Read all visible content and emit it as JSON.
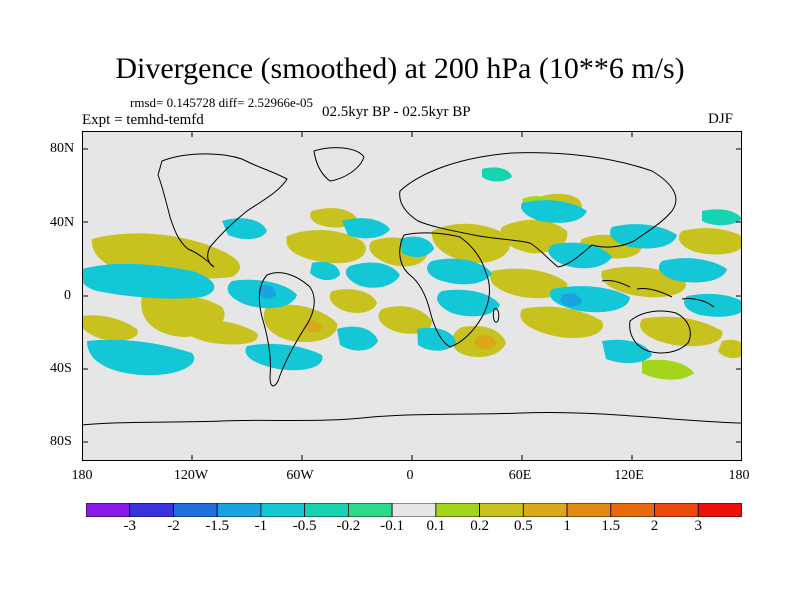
{
  "title": "Divergence (smoothed) at 200 hPa (10**6 m/s)",
  "stats_text": "rmsd= 0.145728 diff= 2.52966e-05",
  "experiment_text": "Expt = temhd-temfd",
  "period_text": "02.5kyr BP - 02.5kyr BP",
  "season_text": "DJF",
  "lat_labels": [
    "80N",
    "40N",
    "0",
    "40S",
    "80S"
  ],
  "lon_labels": [
    "180",
    "120W",
    "60W",
    "0",
    "60E",
    "120E",
    "180"
  ],
  "colorbar": {
    "labels": [
      "-3",
      "-2",
      "-1.5",
      "-1",
      "-0.5",
      "-0.2",
      "-0.1",
      "0.1",
      "0.2",
      "0.5",
      "1",
      "1.5",
      "2",
      "3"
    ],
    "colors": [
      "#8b1ae8",
      "#3a32dc",
      "#1f6fdd",
      "#1aa3e0",
      "#14c7d6",
      "#16d3b1",
      "#2fd98a",
      "#e6e6e6",
      "#a3d51d",
      "#c7c21d",
      "#d9a81b",
      "#e28a14",
      "#e86a10",
      "#ec4a0c",
      "#f0100a"
    ]
  },
  "map": {
    "background": "#e6e6e6",
    "positive_color": "#c7c21d",
    "positive_light": "#a3d51d",
    "positive_strong": "#d9a81b",
    "negative_color": "#14c7d6",
    "negative_light": "#16d3b1",
    "negative_strong": "#1aa3e0"
  }
}
